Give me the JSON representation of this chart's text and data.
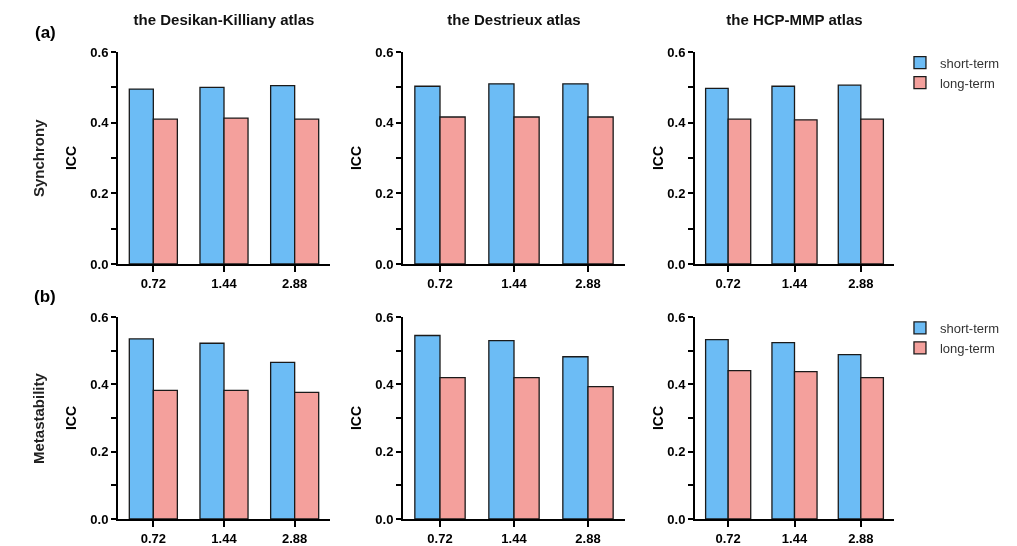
{
  "chart_data": [
    {
      "type": "bar",
      "title": "the Desikan-Killiany atlas",
      "ylabel": "ICC",
      "annotations": [
        "(a)",
        "Synchrony"
      ],
      "categories": [
        "0.72",
        "1.44",
        "2.88"
      ],
      "series": [
        {
          "color": "#6cbcf5",
          "values": [
            0.495,
            0.5,
            0.505
          ]
        },
        {
          "color": "#f4a09c",
          "values": [
            0.41,
            0.413,
            0.41
          ]
        }
      ],
      "ylim": [
        0,
        0.6
      ],
      "yticks": [
        {
          "value": 0,
          "label": "0.0"
        },
        {
          "value": 0.1,
          "label": null
        },
        0.2,
        {
          "value": 0.3,
          "label": null
        },
        0.4,
        {
          "value": 0.5,
          "label": null
        },
        0.6
      ],
      "grid": false,
      "legend": false
    },
    {
      "type": "bar",
      "title": "the Destrieux atlas",
      "ylabel": "ICC",
      "categories": [
        "0.72",
        "1.44",
        "2.88"
      ],
      "series": [
        {
          "color": "#6cbcf5",
          "values": [
            0.503,
            0.51,
            0.51
          ]
        },
        {
          "color": "#f4a09c",
          "values": [
            0.416,
            0.416,
            0.416
          ]
        }
      ],
      "ylim": [
        0,
        0.6
      ],
      "yticks": [
        {
          "value": 0,
          "label": "0.0"
        },
        {
          "value": 0.1,
          "label": null
        },
        0.2,
        {
          "value": 0.3,
          "label": null
        },
        0.4,
        {
          "value": 0.5,
          "label": null
        },
        0.6
      ],
      "grid": false,
      "legend": false
    },
    {
      "type": "bar",
      "title": "the HCP-MMP atlas",
      "ylabel": "ICC",
      "categories": [
        "0.72",
        "1.44",
        "2.88"
      ],
      "series": [
        {
          "name": "short-term",
          "color": "#6cbcf5",
          "values": [
            0.497,
            0.503,
            0.506
          ]
        },
        {
          "name": "long-term",
          "color": "#f4a09c",
          "values": [
            0.41,
            0.408,
            0.41
          ]
        }
      ],
      "ylim": [
        0,
        0.6
      ],
      "yticks": [
        {
          "value": 0,
          "label": "0.0"
        },
        {
          "value": 0.1,
          "label": null
        },
        0.2,
        {
          "value": 0.3,
          "label": null
        },
        0.4,
        {
          "value": 0.5,
          "label": null
        },
        0.6
      ],
      "grid": false,
      "legend": "top right"
    },
    {
      "type": "bar",
      "ylabel": "ICC",
      "annotations": [
        "(b)",
        "Metastability"
      ],
      "categories": [
        "0.72",
        "1.44",
        "2.88"
      ],
      "series": [
        {
          "color": "#6cbcf5",
          "values": [
            0.535,
            0.522,
            0.465
          ]
        },
        {
          "color": "#f4a09c",
          "values": [
            0.382,
            0.382,
            0.376
          ]
        }
      ],
      "ylim": [
        0,
        0.6
      ],
      "yticks": [
        {
          "value": 0,
          "label": "0.0"
        },
        {
          "value": 0.1,
          "label": null
        },
        0.2,
        {
          "value": 0.3,
          "label": null
        },
        0.4,
        {
          "value": 0.5,
          "label": null
        },
        0.6
      ],
      "grid": false,
      "legend": false
    },
    {
      "type": "bar",
      "ylabel": "ICC",
      "categories": [
        "0.72",
        "1.44",
        "2.88"
      ],
      "series": [
        {
          "color": "#6cbcf5",
          "values": [
            0.545,
            0.53,
            0.482
          ]
        },
        {
          "color": "#f4a09c",
          "values": [
            0.42,
            0.42,
            0.393
          ]
        }
      ],
      "ylim": [
        0,
        0.6
      ],
      "yticks": [
        {
          "value": 0,
          "label": "0.0"
        },
        {
          "value": 0.1,
          "label": null
        },
        0.2,
        {
          "value": 0.3,
          "label": null
        },
        0.4,
        {
          "value": 0.5,
          "label": null
        },
        0.6
      ],
      "grid": false,
      "legend": false
    },
    {
      "type": "bar",
      "ylabel": "ICC",
      "categories": [
        "0.72",
        "1.44",
        "2.88"
      ],
      "series": [
        {
          "name": "short-term",
          "color": "#6cbcf5",
          "values": [
            0.533,
            0.524,
            0.488
          ]
        },
        {
          "name": "long-term",
          "color": "#f4a09c",
          "values": [
            0.441,
            0.438,
            0.42
          ]
        }
      ],
      "ylim": [
        0,
        0.6
      ],
      "yticks": [
        {
          "value": 0,
          "label": "0.0"
        },
        {
          "value": 0.1,
          "label": null
        },
        0.2,
        {
          "value": 0.3,
          "label": null
        },
        0.4,
        {
          "value": 0.5,
          "label": null
        },
        0.6
      ],
      "grid": false,
      "legend": "top right"
    }
  ]
}
